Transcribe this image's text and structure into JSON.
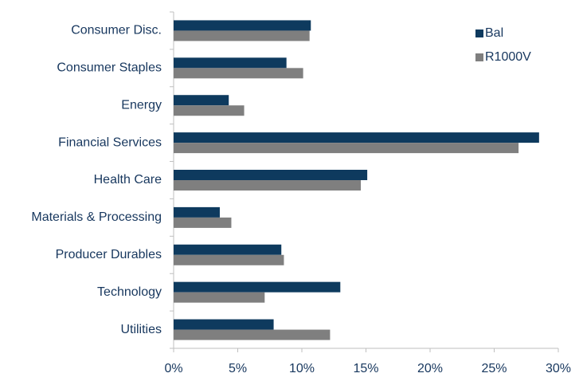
{
  "chart_data": {
    "type": "bar",
    "orientation": "horizontal",
    "categories": [
      "Consumer Disc.",
      "Consumer Staples",
      "Energy",
      "Financial Services",
      "Health Care",
      "Materials & Processing",
      "Producer Durables",
      "Technology",
      "Utilities"
    ],
    "series": [
      {
        "name": "Bal",
        "color": "#0e3a5e",
        "values": [
          10.7,
          8.8,
          4.3,
          28.5,
          15.1,
          3.6,
          8.4,
          13.0,
          7.8
        ]
      },
      {
        "name": "R1000V",
        "color": "#7f7f7f",
        "values": [
          10.6,
          10.1,
          5.5,
          26.9,
          14.6,
          4.5,
          8.6,
          7.1,
          12.2
        ]
      }
    ],
    "xlim": [
      0,
      30
    ],
    "xticks": [
      {
        "value": 0,
        "label": "0%"
      },
      {
        "value": 5,
        "label": "5%"
      },
      {
        "value": 10,
        "label": "10%"
      },
      {
        "value": 15,
        "label": "15%"
      },
      {
        "value": 20,
        "label": "20%"
      },
      {
        "value": 25,
        "label": "25%"
      },
      {
        "value": 30,
        "label": "30%"
      }
    ],
    "legend": "upper right",
    "grid": false
  }
}
